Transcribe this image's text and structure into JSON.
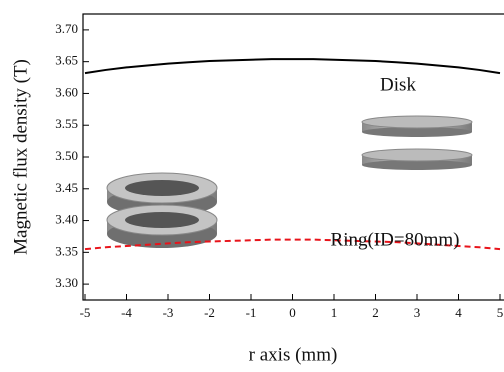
{
  "chart_data": {
    "type": "line",
    "x_label": "r axis (mm)",
    "y_label": "Magnetic flux density (T)",
    "x": [
      -5,
      -4.5,
      -4,
      -3.5,
      -3,
      -2.5,
      -2,
      -1.5,
      -1,
      -0.5,
      0,
      0.5,
      1,
      1.5,
      2,
      2.5,
      3,
      3.5,
      4,
      4.5,
      5
    ],
    "series": [
      {
        "name": "Disk",
        "color": "#000000",
        "dash": false,
        "values": [
          3.632,
          3.637,
          3.641,
          3.644,
          3.647,
          3.649,
          3.651,
          3.652,
          3.653,
          3.654,
          3.654,
          3.654,
          3.653,
          3.652,
          3.651,
          3.649,
          3.647,
          3.644,
          3.641,
          3.637,
          3.632
        ]
      },
      {
        "name": "Ring(ID=80mm)",
        "color": "#e8141b",
        "dash": true,
        "values": [
          3.355,
          3.358,
          3.36,
          3.362,
          3.364,
          3.366,
          3.367,
          3.368,
          3.369,
          3.37,
          3.37,
          3.37,
          3.369,
          3.368,
          3.367,
          3.366,
          3.364,
          3.362,
          3.36,
          3.358,
          3.355
        ]
      }
    ],
    "xlim": [
      -5,
      5
    ],
    "xticks": [
      -5,
      -4,
      -3,
      -2,
      -1,
      0,
      1,
      2,
      3,
      4,
      5
    ],
    "ylim": [
      3.275,
      3.725
    ],
    "yticks": [
      {
        "value": 3.3,
        "label": "3.30"
      },
      3.35,
      {
        "value": 3.4,
        "label": "3.40"
      },
      3.45,
      {
        "value": 3.5,
        "label": "3.50"
      },
      3.55,
      {
        "value": 3.6,
        "label": "3.60"
      },
      3.65,
      {
        "value": 3.7,
        "label": "3.70"
      }
    ]
  }
}
